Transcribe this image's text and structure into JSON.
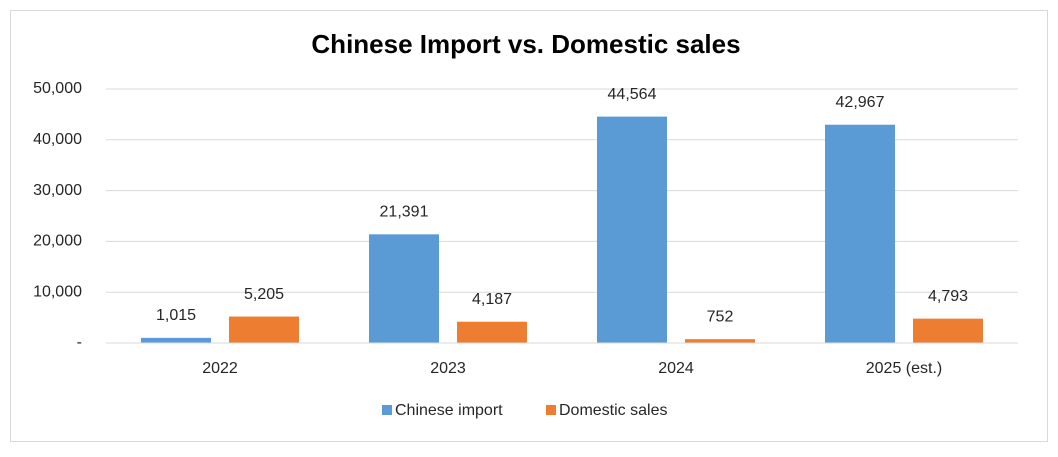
{
  "chart_data": {
    "type": "bar",
    "title": "Chinese Import vs. Domestic sales",
    "categories": [
      "2022",
      "2023",
      "2024",
      "2025 (est.)"
    ],
    "series": [
      {
        "name": "Chinese import",
        "color": "#5b9bd5",
        "values": [
          1015,
          21391,
          44564,
          42967
        ],
        "value_labels": [
          "1,015",
          "21,391",
          "44,564",
          "42,967"
        ]
      },
      {
        "name": "Domestic sales",
        "color": "#ed7d31",
        "values": [
          5205,
          4187,
          752,
          4793
        ],
        "value_labels": [
          "5,205",
          "4,187",
          "752",
          "4,793"
        ]
      }
    ],
    "ylim": [
      0,
      50000
    ],
    "yticks": [
      {
        "value": 0,
        "label": "-"
      },
      {
        "value": 10000,
        "label": "10,000"
      },
      {
        "value": 20000,
        "label": "20,000"
      },
      {
        "value": 30000,
        "label": "30,000"
      },
      {
        "value": 40000,
        "label": "40,000"
      },
      {
        "value": 50000,
        "label": "50,000"
      }
    ],
    "grid": true,
    "legend": "bottom"
  }
}
